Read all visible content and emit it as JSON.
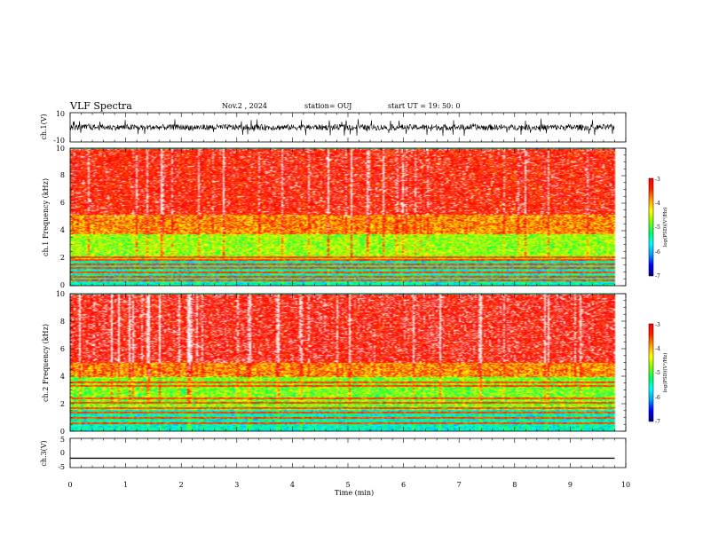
{
  "header": {
    "title": "VLF Spectra",
    "date": "Nov.2 , 2024",
    "station": "station= OUJ",
    "start": "start  UT =   19: 50: 0"
  },
  "chart_data": [
    {
      "type": "line",
      "panel": "ch1-waveform",
      "ylabel": "ch.1(V)",
      "ylim": [
        -10,
        10
      ],
      "yticks": [
        "10",
        "-10"
      ],
      "xlim": [
        0,
        10
      ],
      "series": [
        {
          "style": "noisy waveform",
          "mean": 0,
          "spread": 2,
          "spikes_to": 4
        }
      ]
    },
    {
      "type": "heatmap",
      "panel": "ch1-spectrogram",
      "ylabel": "ch.1 Frequency (kHz)",
      "ylim": [
        0,
        10
      ],
      "yticks": [
        "0",
        "2",
        "4",
        "6",
        "8",
        "10"
      ],
      "xlim": [
        0,
        10
      ],
      "data_end_min": 9.8,
      "colorbar": {
        "label": "log(PSD)(V²/Hz)",
        "range": [
          -7,
          -3
        ],
        "ticks": [
          "-3",
          "-4",
          "-5",
          "-6",
          "-7"
        ]
      },
      "bands": [
        {
          "from_khz": 0,
          "to_khz": 1.9,
          "level": -5.8
        },
        {
          "from_khz": 1.9,
          "to_khz": 3.8,
          "level": -5.1
        },
        {
          "from_khz": 3.8,
          "to_khz": 5.2,
          "level": -4.4
        },
        {
          "from_khz": 5.2,
          "to_khz": 10,
          "level": -3.9
        }
      ],
      "lines_khz": [
        0.4,
        0.7,
        1.0,
        1.3,
        1.6,
        1.9,
        2.1
      ]
    },
    {
      "type": "heatmap",
      "panel": "ch2-spectrogram",
      "ylabel": "ch.2 Frequency (kHz)",
      "ylim": [
        0,
        10
      ],
      "yticks": [
        "0",
        "2",
        "4",
        "6",
        "8",
        "10"
      ],
      "xlim": [
        0,
        10
      ],
      "data_end_min": 9.8,
      "colorbar": {
        "label": "log(PSD)(V²/Hz)",
        "range": [
          -7,
          -3
        ],
        "ticks": [
          "-3",
          "-4",
          "-5",
          "-6",
          "-7"
        ]
      },
      "bands": [
        {
          "from_khz": 0,
          "to_khz": 1.6,
          "level": -5.8
        },
        {
          "from_khz": 1.6,
          "to_khz": 4.0,
          "level": -5.2
        },
        {
          "from_khz": 4.0,
          "to_khz": 5.0,
          "level": -4.4
        },
        {
          "from_khz": 5.0,
          "to_khz": 10,
          "level": -3.8
        }
      ],
      "lines_khz": [
        0.6,
        1.0,
        1.4,
        1.7,
        2.1,
        2.4,
        3.3,
        3.6
      ]
    },
    {
      "type": "line",
      "panel": "ch3-waveform",
      "ylabel": "ch.3(V)",
      "ylim": [
        -5,
        5
      ],
      "yticks": [
        "5",
        "0",
        "-5"
      ],
      "xlim": [
        0,
        10
      ],
      "series": [
        {
          "style": "flat",
          "value": -1.8
        }
      ]
    }
  ],
  "xaxis": {
    "label": "Time  (min)",
    "ticks": [
      "0",
      "1",
      "2",
      "3",
      "4",
      "5",
      "6",
      "7",
      "8",
      "9",
      "10"
    ]
  },
  "colors": {
    "colormap": [
      "#000080",
      "#0000ff",
      "#00a0ff",
      "#00ffff",
      "#00ff60",
      "#80ff00",
      "#ffff00",
      "#ffa000",
      "#ff2000",
      "#ff0000",
      "#ffb0b0",
      "#ffffff"
    ]
  }
}
